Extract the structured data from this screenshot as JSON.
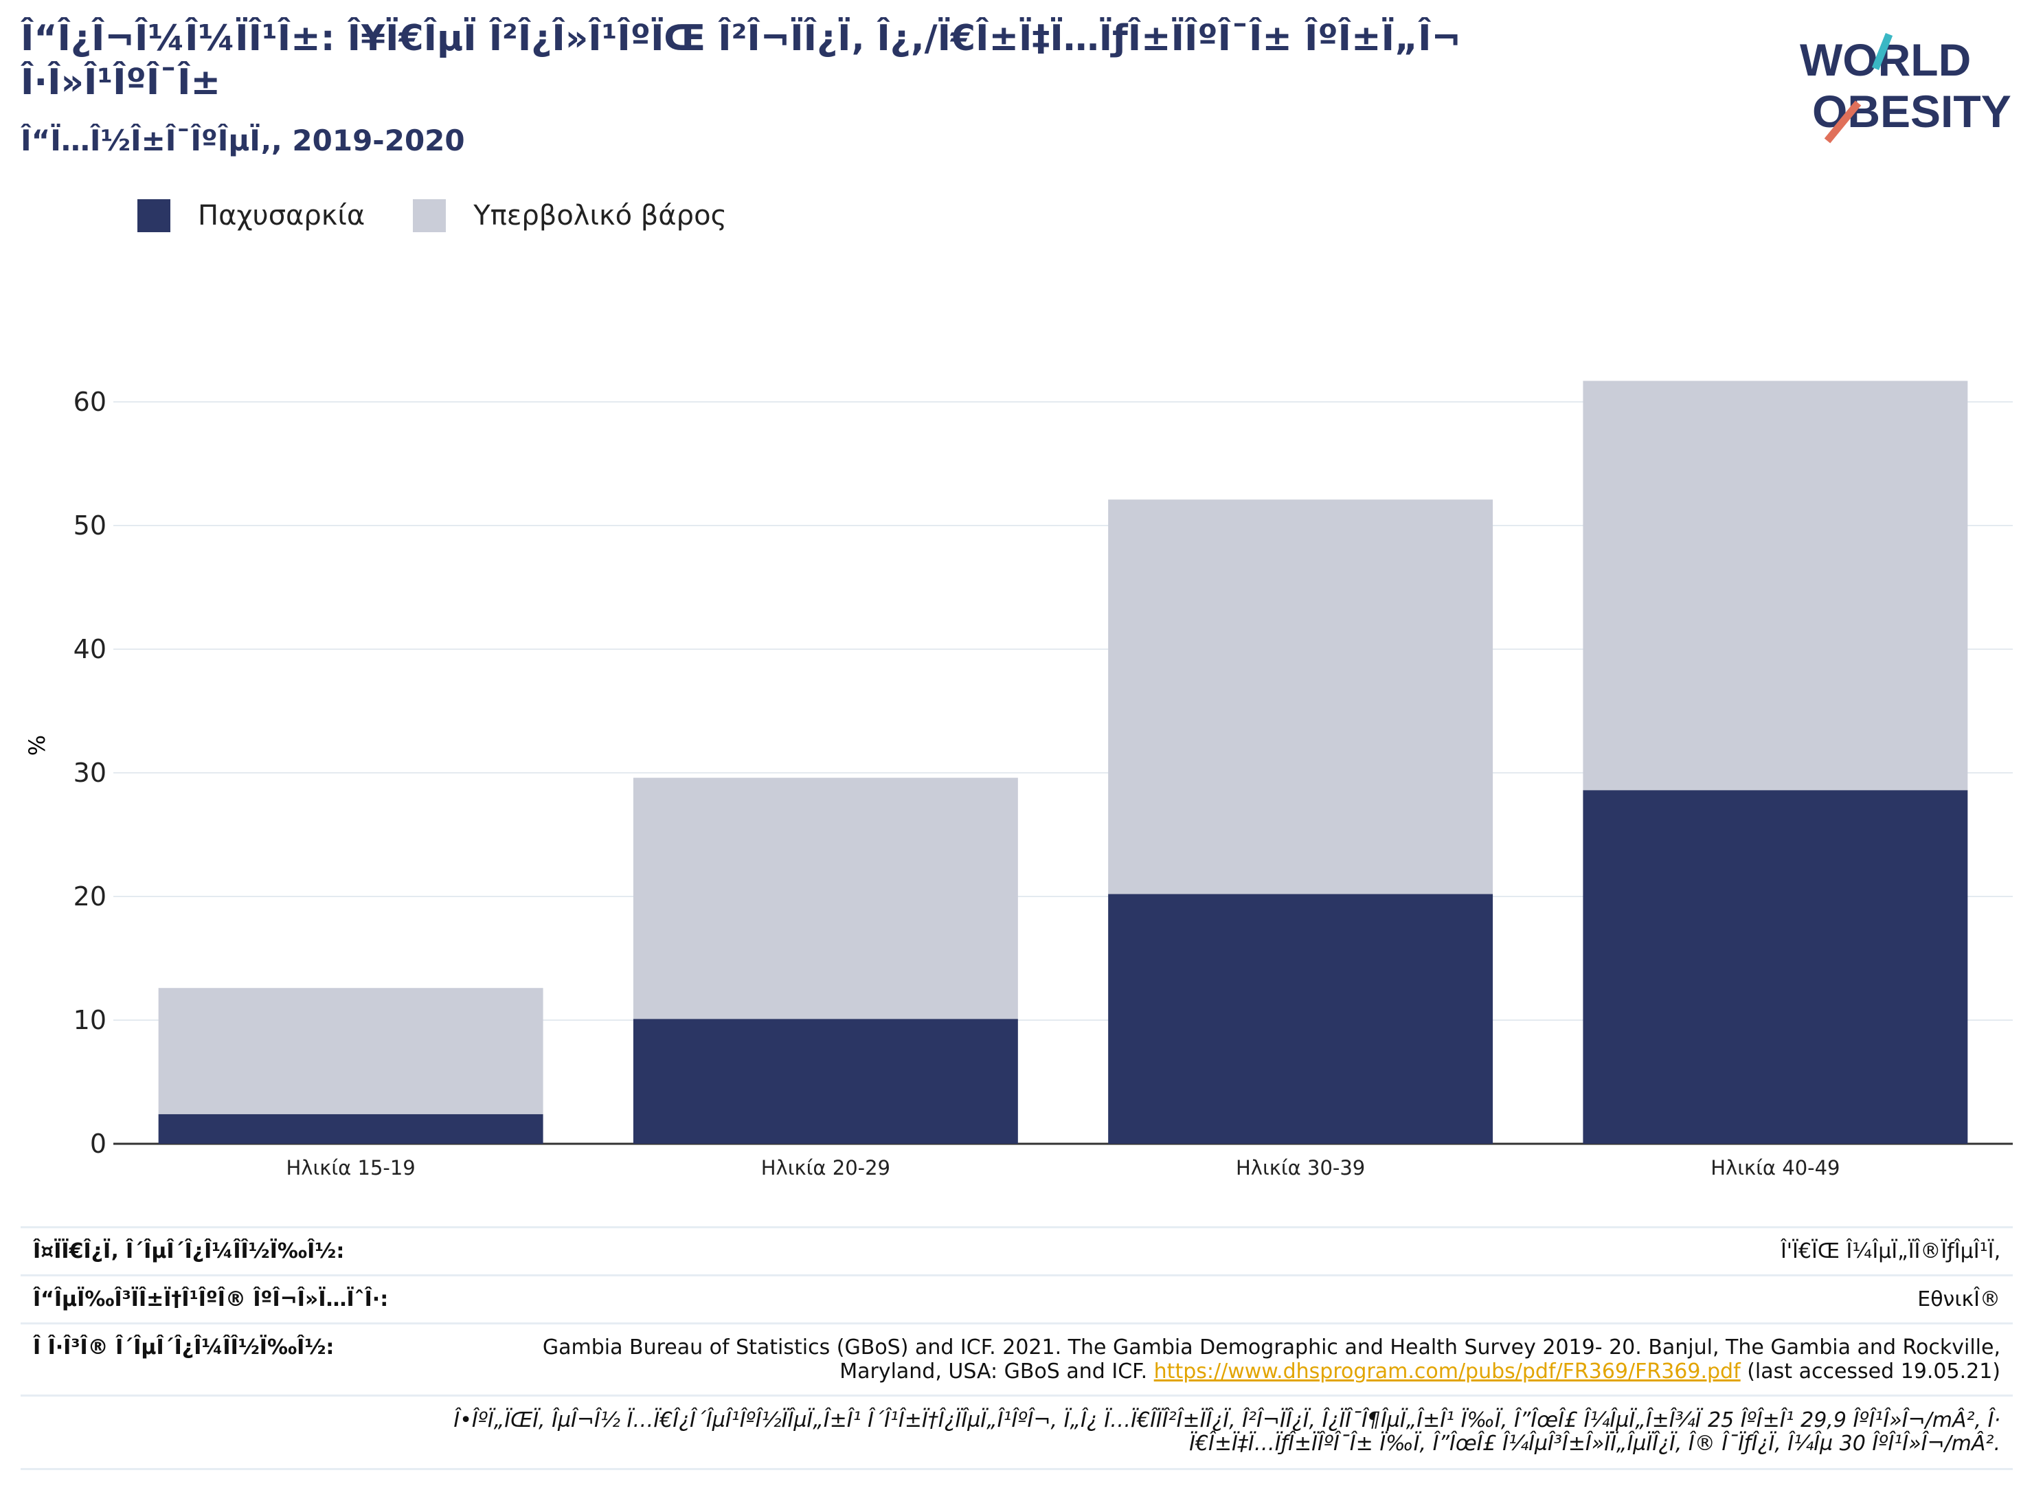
{
  "header": {
    "title": "Î“Î¿Î¬Î¼Î¼ÏÎ¹Î±: Î¥Ï€ÎµÏ Î²Î¿Î»Î¹ÎºÏŒ Î²Î¬ÏÎ¿Ï‚ Î¿,/Ï€Î±Ï‡Ï…ÏƒÎ±ÏÎºÎ¯Î± ÎºÎ±Ï„Î¬ Î·Î»Î¹ÎºÎ¯Î±",
    "subtitle": "Î“Ï…Î½Î±Î¯ÎºÎµÏ‚, 2019-2020",
    "logo_line1": "WORLD",
    "logo_line2": "OBESITY"
  },
  "colors": {
    "obesity": "#2b3664",
    "overweight": "#cacdd8",
    "accent": "#2a3563"
  },
  "chart_data": {
    "type": "bar",
    "stacked": true,
    "categories": [
      "Ηλικία 15-19",
      "Ηλικία 20-29",
      "Ηλικία 30-39",
      "Ηλικία 40-49"
    ],
    "series": [
      {
        "name": "Παχυσαρκία",
        "values": [
          2.4,
          10.1,
          20.2,
          28.6
        ]
      },
      {
        "name": "Υπερβολικό βάρος",
        "values": [
          10.2,
          19.5,
          31.9,
          33.1
        ]
      }
    ],
    "ylabel": "%",
    "ylim": [
      0,
      62
    ],
    "yticks": [
      0,
      10,
      20,
      30,
      40,
      50,
      60
    ],
    "grid": true,
    "legend_position": "top-left"
  },
  "meta": {
    "type_label": "Î¤ÏÏ€Î¿Ï‚ Î´ÎµÎ´Î¿Î¼Î­Î½Ï‰Î½:",
    "type_value": "Î'Ï€ÏŒ Î¼ÎµÏ„ÏÎ®ÏƒÎµÎ¹Ï‚",
    "coverage_label": "Î“ÎµÏ‰Î³ÏÎ±Ï†Î¹ÎºÎ® ÎºÎ¬Î»Ï…ÏˆÎ·:",
    "coverage_value": "ΕθνικÎ®",
    "source_label": "Î Î·Î³Î® Î´ÎµÎ´Î¿Î¼Î­Î½Ï‰Î½:",
    "source_text_1": "Gambia Bureau of Statistics (GBoS) and ICF. 2021. The Gambia Demographic and Health Survey 2019- 20. Banjul, The Gambia and Rockville,",
    "source_text_2": "Maryland, USA: GBoS and ICF.",
    "source_link": "https://www.dhsprogram.com/pubs/pdf/FR369/FR369.pdf",
    "source_suffix": "(last accessed 19.05.21)",
    "note_1": "Î•ÎºÏ„ÏŒÏ‚ ÎµÎ¬Î½ Ï…Ï€Î¿Î´ÎµÎ¹ÎºÎ½ÏÎµÏ„Î±Î¹ Î´Î¹Î±Ï†Î¿ÏÎµÏ„Î¹ÎºÎ¬, Ï„Î¿ Ï…Ï€Î­ÏÎ²Î±ÏÎ¿Ï‚ Î²Î¬ÏÎ¿Ï‚ Î¿ÏÎ¯Î¶ÎµÏ„Î±Î¹ Ï‰Ï‚ Î”ÎœÎ£ Î¼ÎµÏ„Î±Î¾Ï 25 ÎºÎ±Î¹ 29,9 ÎºÎ¹Î»Î¬/mÂ², Î·",
    "note_2": "Ï€Î±Ï‡Ï…ÏƒÎ±ÏÎºÎ¯Î± Ï‰Ï‚ Î”ÎœÎ£ Î¼ÎµÎ³Î±Î»ÏÏ„ÎµÏÎ¿Ï‚ Î® Î¯ÏƒÎ¿Ï‚ Î¼Îµ 30 ÎºÎ¹Î»Î¬/mÂ²."
  }
}
